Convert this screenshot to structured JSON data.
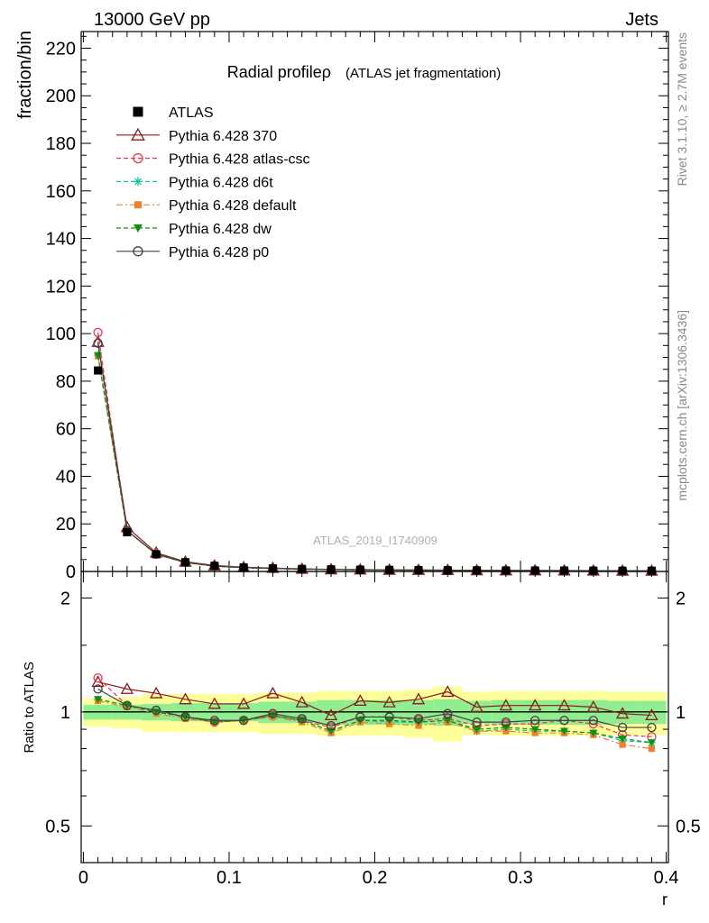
{
  "header": {
    "left": "13000 GeV pp",
    "right": "Jets"
  },
  "side_labels": {
    "rivet": "Rivet 3.1.10, ≥ 2.7M events",
    "mcplots": "mcplots.cern.ch [arXiv:1306.3436]"
  },
  "chart_data": [
    {
      "type": "line",
      "title": "Radial profileρ",
      "subtitle": "(ATLAS jet fragmentation)",
      "watermark": "ATLAS_2019_I1740909",
      "ylabel": "fraction/bin",
      "xlabel": "",
      "xlim": [
        -0.0015,
        0.4015
      ],
      "ylim": [
        0,
        227
      ],
      "yticks": [
        0,
        20,
        40,
        60,
        80,
        100,
        120,
        140,
        160,
        180,
        200,
        220
      ],
      "x": [
        0.01,
        0.03,
        0.05,
        0.07,
        0.09,
        0.11,
        0.13,
        0.15,
        0.17,
        0.19,
        0.21,
        0.23,
        0.25,
        0.27,
        0.29,
        0.31,
        0.33,
        0.35,
        0.37,
        0.39
      ],
      "legend_position": "top-left",
      "series": [
        {
          "name": "ATLAS",
          "color": "#000000",
          "marker": "filled-square",
          "line": "none",
          "values": [
            84.5,
            16.5,
            7.2,
            3.9,
            2.4,
            1.7,
            1.3,
            1.05,
            0.9,
            0.75,
            0.65,
            0.58,
            0.52,
            0.47,
            0.43,
            0.4,
            0.37,
            0.34,
            0.31,
            0.29
          ]
        },
        {
          "name": "Pythia 6.428 370",
          "color": "#8b1a1a",
          "marker": "open-triangle",
          "line": "solid",
          "values": [
            96.5,
            18.6,
            7.9,
            4.1,
            2.5,
            1.8,
            1.45,
            1.1,
            0.88,
            0.8,
            0.69,
            0.63,
            0.58,
            0.48,
            0.45,
            0.42,
            0.39,
            0.35,
            0.31,
            0.29
          ]
        },
        {
          "name": "Pythia 6.428 atlas-csc",
          "color": "#e8374f",
          "marker": "open-circle",
          "line": "dashed",
          "values": [
            100.5,
            17.1,
            7.3,
            3.8,
            2.25,
            1.61,
            1.27,
            1.0,
            0.82,
            0.73,
            0.63,
            0.55,
            0.5,
            0.43,
            0.4,
            0.37,
            0.35,
            0.32,
            0.27,
            0.25
          ]
        },
        {
          "name": "Pythia 6.428 d6t",
          "color": "#14c8a0",
          "marker": "star",
          "line": "dashed",
          "values": [
            91.0,
            17.1,
            7.2,
            3.75,
            2.22,
            1.6,
            1.25,
            0.99,
            0.8,
            0.71,
            0.61,
            0.54,
            0.49,
            0.42,
            0.39,
            0.36,
            0.33,
            0.3,
            0.26,
            0.24
          ]
        },
        {
          "name": "Pythia 6.428 default",
          "color": "#f08030",
          "marker": "filled-square-small",
          "line": "dashdot",
          "values": [
            90.5,
            17.0,
            7.15,
            3.72,
            2.2,
            1.6,
            1.25,
            0.99,
            0.78,
            0.71,
            0.6,
            0.53,
            0.48,
            0.42,
            0.38,
            0.35,
            0.32,
            0.29,
            0.25,
            0.23
          ]
        },
        {
          "name": "Pythia 6.428 dw",
          "color": "#109010",
          "marker": "filled-triangle-down",
          "line": "dashed",
          "values": [
            90.8,
            17.2,
            7.2,
            3.75,
            2.22,
            1.61,
            1.26,
            1.0,
            0.8,
            0.72,
            0.61,
            0.54,
            0.49,
            0.42,
            0.39,
            0.36,
            0.33,
            0.3,
            0.26,
            0.24
          ]
        },
        {
          "name": "Pythia 6.428 p0",
          "color": "#404040",
          "marker": "open-circle",
          "line": "solid",
          "values": [
            96.0,
            17.2,
            7.3,
            3.82,
            2.28,
            1.62,
            1.28,
            1.0,
            0.83,
            0.73,
            0.63,
            0.56,
            0.52,
            0.44,
            0.41,
            0.38,
            0.35,
            0.32,
            0.28,
            0.26
          ]
        }
      ]
    },
    {
      "type": "line",
      "ylabel": "Ratio to ATLAS",
      "xlabel": "r",
      "xlim": [
        -0.0015,
        0.4015
      ],
      "ylim": [
        0.4,
        2.35
      ],
      "log_y": true,
      "ytick_labels": [
        "0.5",
        "1",
        "2"
      ],
      "ytick_values": [
        0.5,
        1,
        2
      ],
      "xtick_labels": [
        "0",
        "0.1",
        "0.2",
        "0.3",
        "0.4"
      ],
      "xtick_values": [
        0,
        0.1,
        0.2,
        0.3,
        0.4
      ],
      "x": [
        0.01,
        0.03,
        0.05,
        0.07,
        0.09,
        0.11,
        0.13,
        0.15,
        0.17,
        0.19,
        0.21,
        0.23,
        0.25,
        0.27,
        0.29,
        0.31,
        0.33,
        0.35,
        0.37,
        0.39
      ],
      "band_inner": {
        "color": "#90ee90",
        "lower": [
          0.955,
          0.955,
          0.95,
          0.945,
          0.945,
          0.945,
          0.935,
          0.935,
          0.925,
          0.925,
          0.925,
          0.925,
          0.92,
          0.93,
          0.925,
          0.925,
          0.925,
          0.925,
          0.93,
          0.93
        ],
        "upper": [
          1.045,
          1.045,
          1.05,
          1.055,
          1.055,
          1.055,
          1.065,
          1.065,
          1.075,
          1.075,
          1.075,
          1.075,
          1.08,
          1.07,
          1.075,
          1.075,
          1.075,
          1.075,
          1.07,
          1.07
        ]
      },
      "band_outer": {
        "color": "#ffff99",
        "lower": [
          0.915,
          0.905,
          0.885,
          0.885,
          0.885,
          0.885,
          0.875,
          0.875,
          0.865,
          0.865,
          0.865,
          0.855,
          0.835,
          0.87,
          0.865,
          0.865,
          0.865,
          0.865,
          0.87,
          0.87
        ],
        "upper": [
          1.085,
          1.095,
          1.115,
          1.115,
          1.115,
          1.115,
          1.125,
          1.125,
          1.135,
          1.135,
          1.135,
          1.145,
          1.165,
          1.13,
          1.135,
          1.135,
          1.135,
          1.135,
          1.13,
          1.13
        ]
      },
      "reference_line": 1,
      "series": [
        {
          "name": "Pythia 6.428 370",
          "color": "#8b1a1a",
          "marker": "open-triangle",
          "line": "solid",
          "values": [
            1.2,
            1.15,
            1.12,
            1.08,
            1.05,
            1.05,
            1.12,
            1.06,
            0.98,
            1.07,
            1.06,
            1.08,
            1.13,
            1.03,
            1.04,
            1.04,
            1.04,
            1.03,
            0.99,
            0.98
          ]
        },
        {
          "name": "Pythia 6.428 atlas-csc",
          "color": "#e8374f",
          "marker": "open-circle",
          "line": "dashed",
          "values": [
            1.23,
            1.04,
            1.01,
            0.97,
            0.94,
            0.95,
            0.98,
            0.95,
            0.91,
            0.97,
            0.97,
            0.95,
            0.96,
            0.92,
            0.93,
            0.93,
            0.95,
            0.93,
            0.87,
            0.86
          ]
        },
        {
          "name": "Pythia 6.428 d6t",
          "color": "#14c8a0",
          "marker": "star",
          "line": "dashed",
          "values": [
            1.08,
            1.04,
            1.0,
            0.97,
            0.94,
            0.95,
            0.97,
            0.95,
            0.89,
            0.95,
            0.94,
            0.94,
            0.95,
            0.89,
            0.9,
            0.89,
            0.89,
            0.88,
            0.84,
            0.83
          ]
        },
        {
          "name": "Pythia 6.428 default",
          "color": "#f08030",
          "marker": "filled-square-small",
          "line": "dashdot",
          "values": [
            1.07,
            1.03,
            0.99,
            0.96,
            0.94,
            0.95,
            0.97,
            0.94,
            0.88,
            0.94,
            0.93,
            0.92,
            0.94,
            0.89,
            0.89,
            0.88,
            0.88,
            0.87,
            0.82,
            0.8
          ]
        },
        {
          "name": "Pythia 6.428 dw",
          "color": "#109010",
          "marker": "filled-triangle-down",
          "line": "dashed",
          "values": [
            1.08,
            1.04,
            1.0,
            0.97,
            0.94,
            0.95,
            0.98,
            0.95,
            0.89,
            0.95,
            0.95,
            0.94,
            0.95,
            0.9,
            0.91,
            0.9,
            0.89,
            0.88,
            0.85,
            0.83
          ]
        },
        {
          "name": "Pythia 6.428 p0",
          "color": "#404040",
          "marker": "open-circle",
          "line": "solid",
          "values": [
            1.15,
            1.04,
            1.01,
            0.97,
            0.95,
            0.95,
            0.99,
            0.96,
            0.92,
            0.97,
            0.97,
            0.96,
            0.99,
            0.94,
            0.94,
            0.95,
            0.95,
            0.95,
            0.91,
            0.91
          ]
        }
      ]
    }
  ]
}
